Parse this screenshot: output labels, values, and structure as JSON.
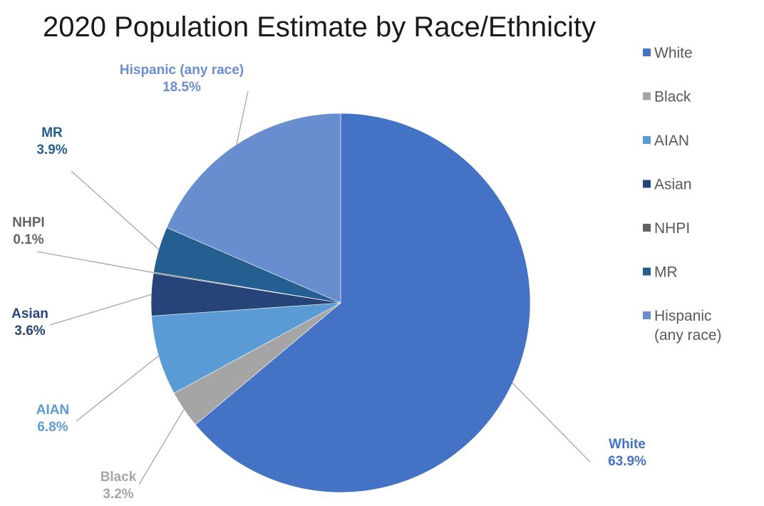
{
  "chart_data": {
    "type": "pie",
    "title": "2020 Population Estimate by Race/Ethnicity",
    "categories": [
      "White",
      "Black",
      "AIAN",
      "Asian",
      "NHPI",
      "MR",
      "Hispanic (any race)"
    ],
    "values": [
      63.9,
      3.2,
      6.8,
      3.6,
      0.1,
      3.9,
      18.5
    ],
    "value_labels": [
      "63.9%",
      "3.2%",
      "6.8%",
      "3.6%",
      "0.1%",
      "3.9%",
      "18.5%"
    ],
    "colors": [
      "#4472C4",
      "#A5A5A5",
      "#5B9BD5",
      "#264478",
      "#636363",
      "#255E91",
      "#698ED0"
    ],
    "label_colors": [
      "#4472C4",
      "#A5A5A5",
      "#5B9BD5",
      "#264478",
      "#636363",
      "#255E91",
      "#698ED0"
    ],
    "legend": {
      "placement": "right",
      "entries": [
        "White",
        "Black",
        "AIAN",
        "Asian",
        "NHPI",
        "MR",
        "Hispanic (any race)"
      ]
    },
    "start_angle": "12 o'clock",
    "direction": "clockwise"
  }
}
